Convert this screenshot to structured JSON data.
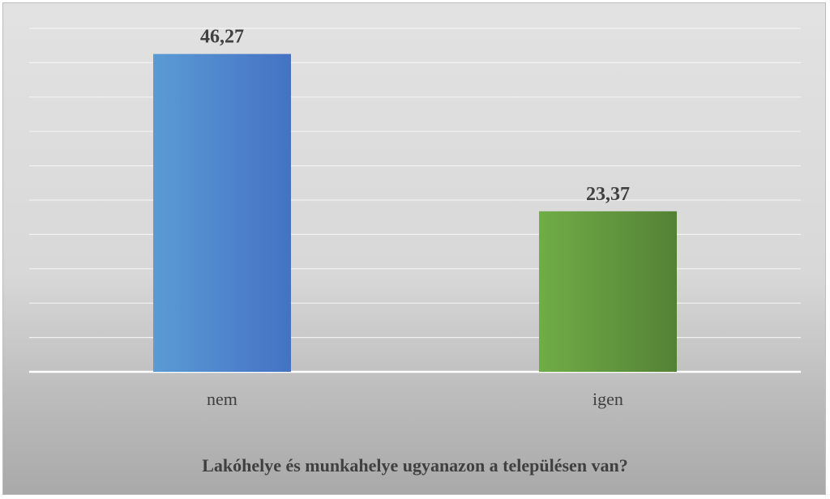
{
  "chart_data": {
    "type": "bar",
    "categories": [
      "nem",
      "igen"
    ],
    "values": [
      46.27,
      23.37
    ],
    "value_labels": [
      "46,27",
      "23,37"
    ],
    "title": "",
    "xlabel": "Lakóhelye és munkahelye ugyanazon a településen van?",
    "ylabel": "",
    "ylim": [
      0,
      50
    ],
    "grid": true,
    "legend": "none",
    "bar_colors": [
      {
        "from": "#5b9bd5",
        "to": "#4472c4"
      },
      {
        "from": "#70ad47",
        "to": "#548235"
      }
    ],
    "gridline_color": "#f2f2f2",
    "axis_color": "#ffffff"
  }
}
